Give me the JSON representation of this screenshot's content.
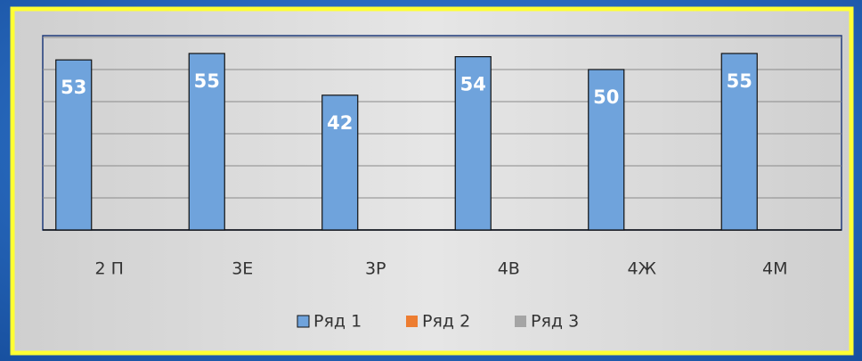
{
  "chart_data": {
    "type": "bar",
    "categories": [
      "2 П",
      "3Е",
      "3Р",
      "4В",
      "4Ж",
      "4М"
    ],
    "series": [
      {
        "name": "Ряд 1",
        "color": "#6fa3dc",
        "values": [
          53,
          55,
          42,
          54,
          50,
          55
        ]
      },
      {
        "name": "Ряд 2",
        "color": "#ed7d31",
        "values": [
          null,
          null,
          null,
          null,
          null,
          null
        ]
      },
      {
        "name": "Ряд 3",
        "color": "#a5a5a5",
        "values": [
          null,
          null,
          null,
          null,
          null,
          null
        ]
      }
    ],
    "ylim": [
      0,
      60
    ],
    "yticks": [
      0,
      10,
      20,
      30,
      40,
      50,
      60
    ],
    "grid": true,
    "legend": "bottom"
  }
}
